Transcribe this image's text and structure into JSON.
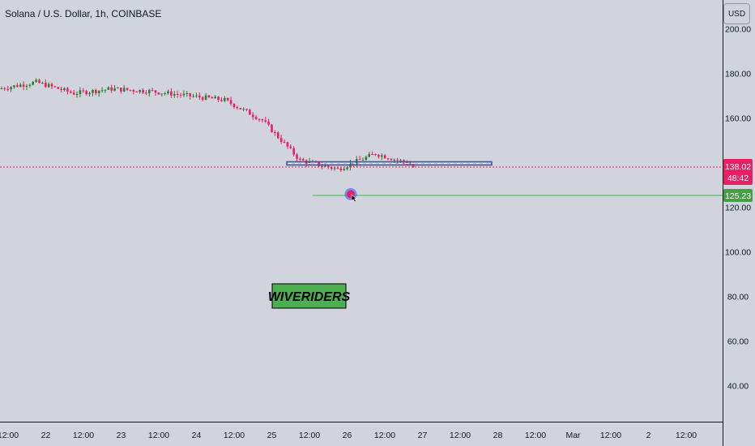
{
  "header": {
    "symbol_title": "Solana / U.S. Dollar, 1h, COINBASE",
    "currency_button": "USD"
  },
  "price_scale": {
    "labels": [
      "200.00",
      "180.00",
      "160.00",
      "120.00",
      "100.00",
      "80.00",
      "60.00",
      "40.00"
    ],
    "current_price": "138.02",
    "countdown": "48:42",
    "level_label": "125.23"
  },
  "time_scale": {
    "labels": [
      "12:00",
      "22",
      "12:00",
      "23",
      "12:00",
      "24",
      "12:00",
      "25",
      "12:00",
      "26",
      "12:00",
      "27",
      "12:00",
      "28",
      "12:00",
      "Mar",
      "12:00",
      "2",
      "12:00"
    ]
  },
  "watermark": {
    "text": "WIVERIDERS"
  },
  "colors": {
    "background": "#d1d4dc",
    "candle_up": "#2e7d32",
    "candle_down": "#e91e63",
    "current_price": "#e91e63",
    "level_line": "#4caf50",
    "zone_border": "#3f51b5",
    "watermark_bg": "#4caf50"
  },
  "chart_data": {
    "type": "line",
    "symbol": "SOL/USD",
    "interval": "1h",
    "x_ticks": [
      "12:00",
      "22",
      "12:00",
      "23",
      "12:00",
      "24",
      "12:00",
      "25",
      "12:00",
      "26",
      "12:00",
      "27",
      "12:00",
      "28",
      "12:00",
      "Mar",
      "12:00",
      "2",
      "12:00"
    ],
    "x": [
      "21 12:00",
      "22 00:00",
      "22 12:00",
      "23 00:00",
      "23 12:00",
      "24 00:00",
      "24 12:00",
      "25 00:00",
      "25 12:00",
      "26 00:00",
      "26 12:00",
      "26 18:00"
    ],
    "series": [
      {
        "values": [
          173,
          176,
          171,
          173,
          172,
          170,
          168,
          159,
          141,
          137,
          144,
          139
        ]
      }
    ],
    "y_ticks": [
      40,
      60,
      80,
      100,
      120,
      160,
      180,
      200
    ],
    "ylim": [
      22,
      204
    ],
    "current_price": 138.02,
    "horizontal_level": 125.23,
    "support_zone": [
      138.5,
      139.8
    ],
    "grid": false
  }
}
